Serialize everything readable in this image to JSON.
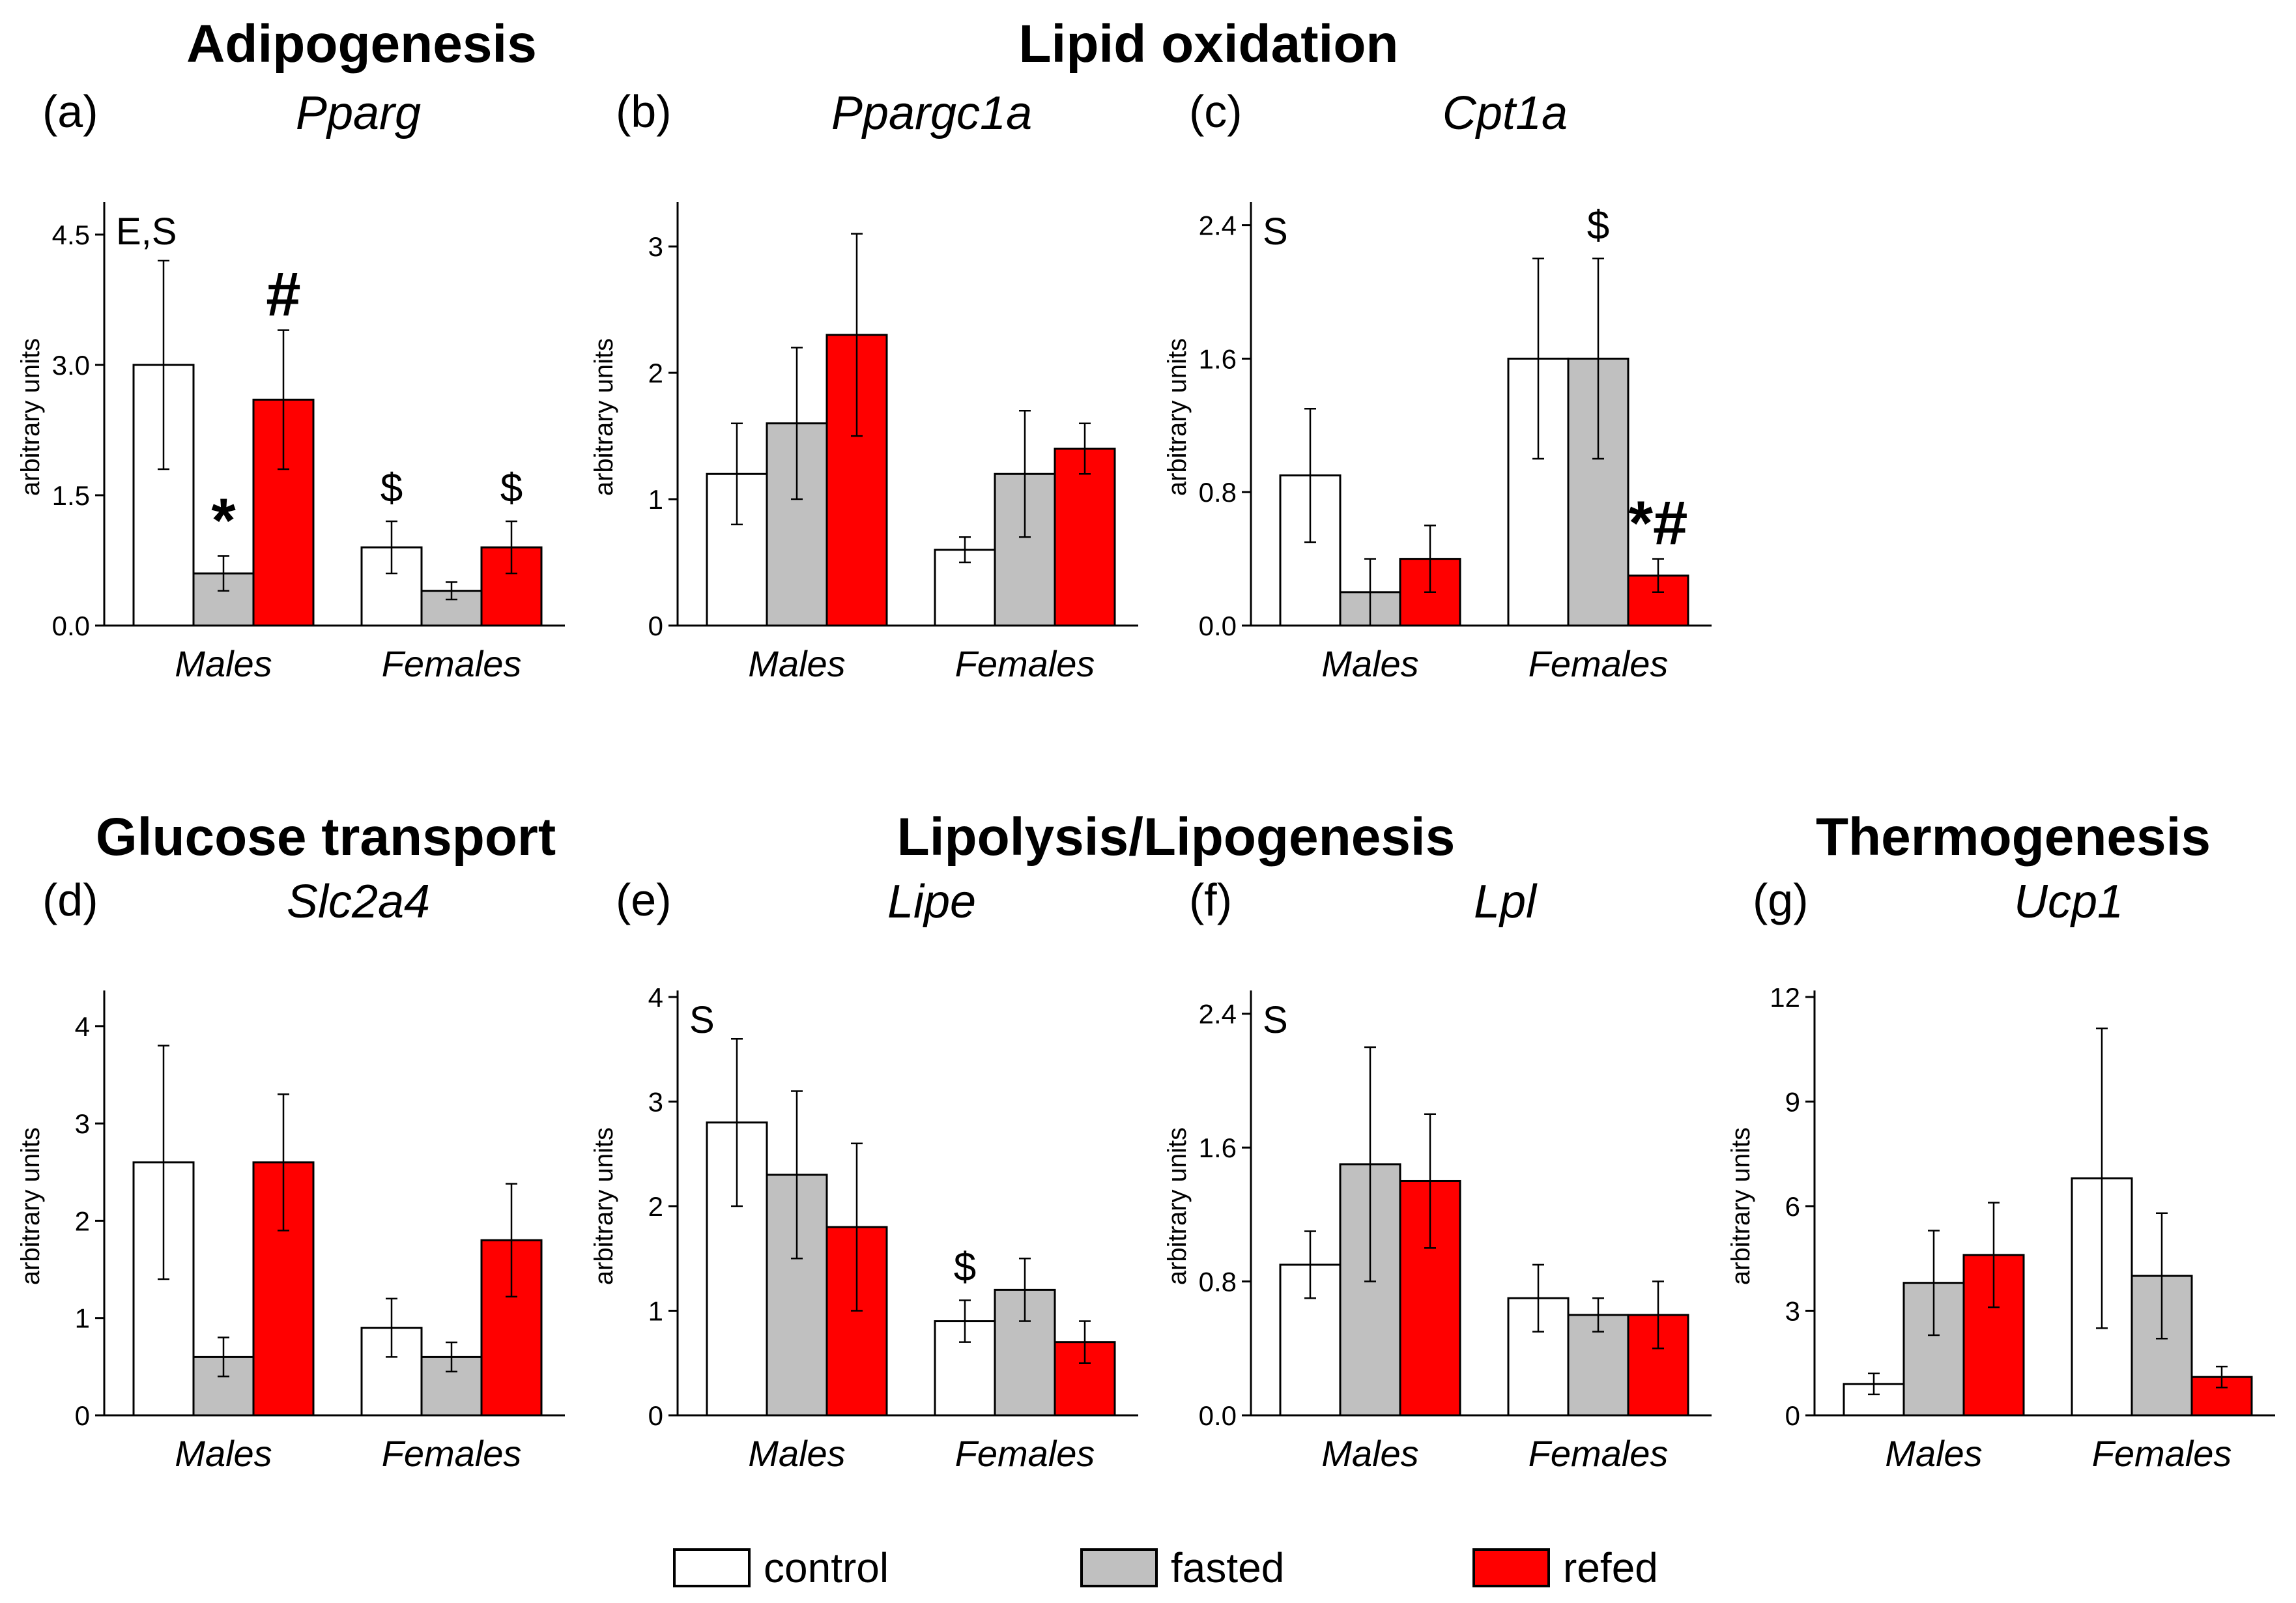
{
  "colors": {
    "control": "#ffffff",
    "fasted": "#c0c0c0",
    "refed": "#ff0000",
    "stroke": "#000000"
  },
  "sections": [
    {
      "id": "adipogenesis",
      "title": "Adipogenesis"
    },
    {
      "id": "lipid-oxidation",
      "title": "Lipid oxidation"
    },
    {
      "id": "glucose-transport",
      "title": "Glucose transport"
    },
    {
      "id": "lipolysis-lipogenesis",
      "title": "Lipolysis/Lipogenesis"
    },
    {
      "id": "thermogenesis",
      "title": "Thermogenesis"
    }
  ],
  "legend": [
    {
      "key": "control",
      "label": "control"
    },
    {
      "key": "fasted",
      "label": "fasted"
    },
    {
      "key": "refed",
      "label": "refed"
    }
  ],
  "chart_data": [
    {
      "type": "bar",
      "panel": "(a)",
      "title": "Pparg",
      "ylabel": "arbitrary units",
      "ylim": [
        0,
        4.8
      ],
      "yticks": [
        0.0,
        1.5,
        3.0,
        4.5
      ],
      "tick_decimals": 1,
      "categories": [
        "Males",
        "Females"
      ],
      "series": [
        {
          "name": "control",
          "values": [
            3.0,
            0.9
          ],
          "errors": [
            1.2,
            0.3
          ]
        },
        {
          "name": "fasted",
          "values": [
            0.6,
            0.4
          ],
          "errors": [
            0.2,
            0.1
          ]
        },
        {
          "name": "refed",
          "values": [
            2.6,
            0.9
          ],
          "errors": [
            0.8,
            0.3
          ]
        }
      ],
      "corner_note": "E,S",
      "annotations": [
        {
          "text": "*",
          "category": 0,
          "series": 1,
          "size": "big"
        },
        {
          "text": "#",
          "category": 0,
          "series": 2,
          "size": "big"
        },
        {
          "text": "$",
          "category": 1,
          "series": 0,
          "size": "small"
        },
        {
          "text": "$",
          "category": 1,
          "series": 2,
          "size": "small"
        }
      ]
    },
    {
      "type": "bar",
      "panel": "(b)",
      "title": "Ppargc1a",
      "ylabel": "arbitrary units",
      "ylim": [
        0,
        3.3
      ],
      "yticks": [
        0,
        1,
        2,
        3
      ],
      "tick_decimals": 0,
      "categories": [
        "Males",
        "Females"
      ],
      "series": [
        {
          "name": "control",
          "values": [
            1.2,
            0.6
          ],
          "errors": [
            0.4,
            0.1
          ]
        },
        {
          "name": "fasted",
          "values": [
            1.6,
            1.2
          ],
          "errors": [
            0.6,
            0.5
          ]
        },
        {
          "name": "refed",
          "values": [
            2.3,
            1.4
          ],
          "errors": [
            0.8,
            0.2
          ]
        }
      ],
      "corner_note": "",
      "annotations": []
    },
    {
      "type": "bar",
      "panel": "(c)",
      "title": "Cpt1a",
      "ylabel": "arbitrary units",
      "ylim": [
        0,
        2.5
      ],
      "yticks": [
        0.0,
        0.8,
        1.6,
        2.4
      ],
      "tick_decimals": 1,
      "categories": [
        "Males",
        "Females"
      ],
      "series": [
        {
          "name": "control",
          "values": [
            0.9,
            1.6
          ],
          "errors": [
            0.4,
            0.6
          ]
        },
        {
          "name": "fasted",
          "values": [
            0.2,
            1.6
          ],
          "errors": [
            0.2,
            0.6
          ]
        },
        {
          "name": "refed",
          "values": [
            0.4,
            0.3
          ],
          "errors": [
            0.2,
            0.1
          ]
        }
      ],
      "corner_note": "S",
      "annotations": [
        {
          "text": "$",
          "category": 1,
          "series": 1,
          "size": "small"
        },
        {
          "text": "*#",
          "category": 1,
          "series": 2,
          "size": "big"
        }
      ]
    },
    {
      "type": "bar",
      "panel": "(d)",
      "title": "Slc2a4",
      "ylabel": "arbitrary units",
      "ylim": [
        0,
        4.3
      ],
      "yticks": [
        0,
        1,
        2,
        3,
        4
      ],
      "tick_decimals": 0,
      "categories": [
        "Males",
        "Females"
      ],
      "series": [
        {
          "name": "control",
          "values": [
            2.6,
            0.9
          ],
          "errors": [
            1.2,
            0.3
          ]
        },
        {
          "name": "fasted",
          "values": [
            0.6,
            0.6
          ],
          "errors": [
            0.2,
            0.15
          ]
        },
        {
          "name": "refed",
          "values": [
            2.6,
            1.8
          ],
          "errors": [
            0.7,
            0.58
          ]
        }
      ],
      "corner_note": "",
      "annotations": []
    },
    {
      "type": "bar",
      "panel": "(e)",
      "title": "Lipe",
      "ylabel": "arbitrary units",
      "ylim": [
        0,
        4.0
      ],
      "yticks": [
        0,
        1,
        2,
        3,
        4
      ],
      "tick_decimals": 0,
      "categories": [
        "Males",
        "Females"
      ],
      "series": [
        {
          "name": "control",
          "values": [
            2.8,
            0.9
          ],
          "errors": [
            0.8,
            0.2
          ]
        },
        {
          "name": "fasted",
          "values": [
            2.3,
            1.2
          ],
          "errors": [
            0.8,
            0.3
          ]
        },
        {
          "name": "refed",
          "values": [
            1.8,
            0.7
          ],
          "errors": [
            0.8,
            0.2
          ]
        }
      ],
      "corner_note": "S",
      "annotations": [
        {
          "text": "$",
          "category": 1,
          "series": 0,
          "size": "small"
        }
      ]
    },
    {
      "type": "bar",
      "panel": "(f)",
      "title": "Lpl",
      "ylabel": "arbitrary units",
      "ylim": [
        0,
        2.5
      ],
      "yticks": [
        0.0,
        0.8,
        1.6,
        2.4
      ],
      "tick_decimals": 1,
      "categories": [
        "Males",
        "Females"
      ],
      "series": [
        {
          "name": "control",
          "values": [
            0.9,
            0.7
          ],
          "errors": [
            0.2,
            0.2
          ]
        },
        {
          "name": "fasted",
          "values": [
            1.5,
            0.6
          ],
          "errors": [
            0.7,
            0.1
          ]
        },
        {
          "name": "refed",
          "values": [
            1.4,
            0.6
          ],
          "errors": [
            0.4,
            0.2
          ]
        }
      ],
      "corner_note": "S",
      "annotations": []
    },
    {
      "type": "bar",
      "panel": "(g)",
      "title": "Ucp1",
      "ylabel": "arbitrary units",
      "ylim": [
        0,
        12
      ],
      "yticks": [
        0,
        3,
        6,
        9,
        12
      ],
      "tick_decimals": 0,
      "categories": [
        "Males",
        "Females"
      ],
      "series": [
        {
          "name": "control",
          "values": [
            0.9,
            6.8
          ],
          "errors": [
            0.3,
            4.3
          ]
        },
        {
          "name": "fasted",
          "values": [
            3.8,
            4.0
          ],
          "errors": [
            1.5,
            1.8
          ]
        },
        {
          "name": "refed",
          "values": [
            4.6,
            1.1
          ],
          "errors": [
            1.5,
            0.3
          ]
        }
      ],
      "corner_note": "",
      "annotations": []
    }
  ]
}
